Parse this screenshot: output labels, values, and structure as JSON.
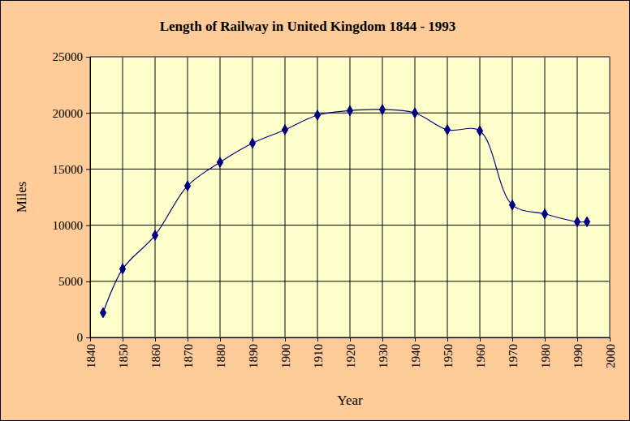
{
  "chart_data": {
    "type": "line",
    "title": "Length of Railway in United Kingdom 1844 - 1993",
    "xlabel": "Year",
    "ylabel": "Miles",
    "x": [
      1844,
      1850,
      1860,
      1870,
      1880,
      1890,
      1900,
      1910,
      1920,
      1930,
      1940,
      1950,
      1960,
      1970,
      1980,
      1990,
      1993
    ],
    "values": [
      2200,
      6100,
      9100,
      13500,
      15600,
      17300,
      18500,
      19800,
      20200,
      20300,
      20000,
      18500,
      18400,
      11800,
      11000,
      10300,
      10300
    ],
    "color": "#000080",
    "marker": "diamond",
    "xlim": [
      1840,
      2000
    ],
    "xticks": [
      1840,
      1850,
      1860,
      1870,
      1880,
      1890,
      1900,
      1910,
      1920,
      1930,
      1940,
      1950,
      1960,
      1970,
      1980,
      1990,
      2000
    ],
    "ylim": [
      0,
      25000
    ],
    "yticks": [
      0,
      5000,
      10000,
      15000,
      20000,
      25000
    ],
    "grid": true
  }
}
